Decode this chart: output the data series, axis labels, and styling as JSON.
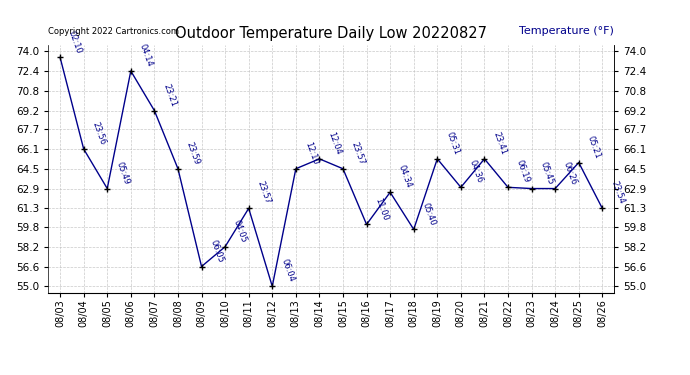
{
  "title": "Outdoor Temperature Daily Low 20220827",
  "ylabel": "Temperature (°F)",
  "copyright": "Copyright 2022 Cartronics.com",
  "background_color": "#ffffff",
  "line_color": "#00008b",
  "marker_color": "#000000",
  "yticks": [
    55.0,
    56.6,
    58.2,
    59.8,
    61.3,
    62.9,
    64.5,
    66.1,
    67.7,
    69.2,
    70.8,
    72.4,
    74.0
  ],
  "ylim": [
    54.5,
    74.5
  ],
  "dates": [
    "08/03",
    "08/04",
    "08/05",
    "08/06",
    "08/07",
    "08/08",
    "08/09",
    "08/10",
    "08/11",
    "08/12",
    "08/13",
    "08/14",
    "08/15",
    "08/16",
    "08/17",
    "08/18",
    "08/19",
    "08/20",
    "08/21",
    "08/22",
    "08/23",
    "08/24",
    "08/25",
    "08/26"
  ],
  "temps": [
    73.5,
    66.1,
    62.9,
    72.4,
    69.2,
    64.5,
    56.6,
    58.2,
    61.3,
    55.0,
    64.5,
    65.3,
    64.5,
    60.0,
    62.6,
    59.6,
    65.3,
    63.0,
    65.3,
    63.0,
    62.9,
    62.9,
    65.0,
    61.3
  ],
  "time_labels": [
    "02:10",
    "23:56",
    "05:49",
    "04:14",
    "23:21",
    "23:59",
    "06:05",
    "04:05",
    "23:57",
    "06:04",
    "12:10",
    "12:04",
    "23:57",
    "11:00",
    "04:34",
    "05:40",
    "05:31",
    "04:36",
    "23:41",
    "06:19",
    "05:45",
    "06:26",
    "05:21",
    "23:54"
  ]
}
